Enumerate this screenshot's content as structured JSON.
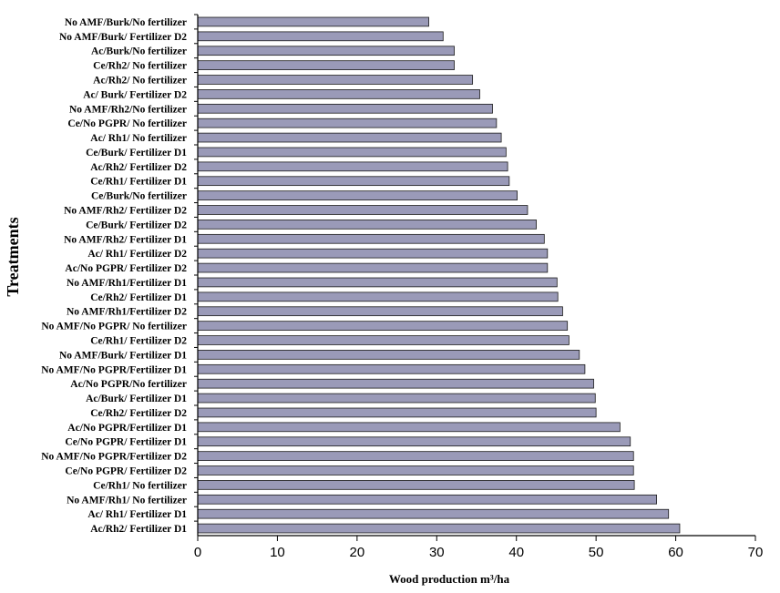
{
  "chart_data": {
    "type": "bar",
    "orientation": "horizontal",
    "xlabel": "Wood production m³/ha",
    "ylabel": "Treatments",
    "xlim": [
      0,
      70
    ],
    "xticks": [
      0,
      10,
      20,
      30,
      40,
      50,
      60,
      70
    ],
    "bar_color": "#9a9ab8",
    "grid": false,
    "categories": [
      "No AMF/Burk/No fertilizer",
      "No AMF/Burk/ Fertilizer D2",
      "Ac/Burk/No fertilizer",
      "Ce/Rh2/ No fertilizer",
      "Ac/Rh2/ No fertilizer",
      "Ac/ Burk/ Fertilizer D2",
      "No AMF/Rh2/No fertilizer",
      "Ce/No PGPR/ No fertilizer",
      "Ac/ Rh1/ No fertilizer",
      "Ce/Burk/ Fertilizer D1",
      "Ac/Rh2/ Fertilizer D2",
      "Ce/Rh1/ Fertilizer D1",
      "Ce/Burk/No fertilizer",
      "No AMF/Rh2/ Fertilizer D2",
      "Ce/Burk/ Fertilizer D2",
      "No AMF/Rh2/ Fertilizer D1",
      "Ac/ Rh1/ Fertilizer D2",
      "Ac/No PGPR/ Fertilizer D2",
      "No AMF/Rh1/Fertilizer D1",
      "Ce/Rh2/ Fertilizer D1",
      "No AMF/Rh1/Fertilizer D2",
      "No AMF/No PGPR/ No fertilizer",
      "Ce/Rh1/ Fertilizer D2",
      "No AMF/Burk/ Fertilizer D1",
      "No AMF/No PGPR/Fertilizer D1",
      "Ac/No PGPR/No fertilizer",
      "Ac/Burk/ Fertilizer D1",
      "Ce/Rh2/ Fertilizer D2",
      "Ac/No PGPR/Fertilizer D1",
      "Ce/No PGPR/ Fertilizer D1",
      "No AMF/No PGPR/Fertilizer D2",
      "Ce/No PGPR/ Fertilizer D2",
      "Ce/Rh1/ No fertilizer",
      "No AMF/Rh1/ No fertilizer",
      "Ac/ Rh1/ Fertilizer D1",
      "Ac/Rh2/ Fertilizer D1"
    ],
    "values": [
      29.0,
      30.8,
      32.2,
      32.2,
      34.5,
      35.4,
      37.0,
      37.5,
      38.1,
      38.7,
      38.9,
      39.1,
      40.1,
      41.4,
      42.5,
      43.5,
      43.9,
      43.9,
      45.1,
      45.2,
      45.8,
      46.4,
      46.6,
      47.9,
      48.6,
      49.7,
      49.9,
      50.0,
      53.0,
      54.3,
      54.7,
      54.7,
      54.8,
      57.6,
      59.1,
      60.5
    ]
  }
}
